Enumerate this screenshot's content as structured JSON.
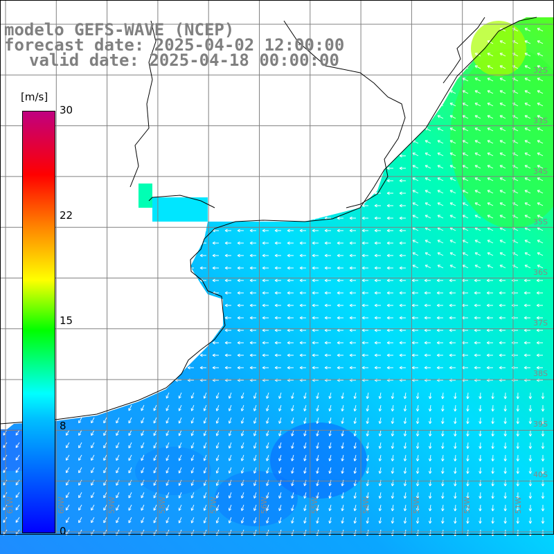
{
  "title": {
    "line1": "modelo GEFS-WAVE (NCEP)",
    "line2": "forecast date: 2025-04-02 12:00:00",
    "line3": "valid date: 2025-04-18 00:00:00"
  },
  "colorbar": {
    "unit": "[m/s]",
    "ticks": [
      "30",
      "22",
      "15",
      "8",
      "0"
    ],
    "colors": [
      "#0000ff",
      "#00bfff",
      "#00ffff",
      "#00ff00",
      "#ffff00",
      "#ff8000",
      "#ff0000",
      "#c00080"
    ]
  },
  "axes": {
    "lon_labels": [
      "61W",
      "60W",
      "59W",
      "58W",
      "57W",
      "56W",
      "55W",
      "54W",
      "53W",
      "52W",
      "51W"
    ],
    "lat_labels": [
      "32S",
      "33S",
      "34S",
      "35S",
      "36S",
      "37S",
      "38S",
      "39S",
      "40S"
    ]
  },
  "colors": {
    "land": "#ffffff",
    "coast": "#000000",
    "grid": "#808080",
    "arrows": "#ffffff"
  }
}
